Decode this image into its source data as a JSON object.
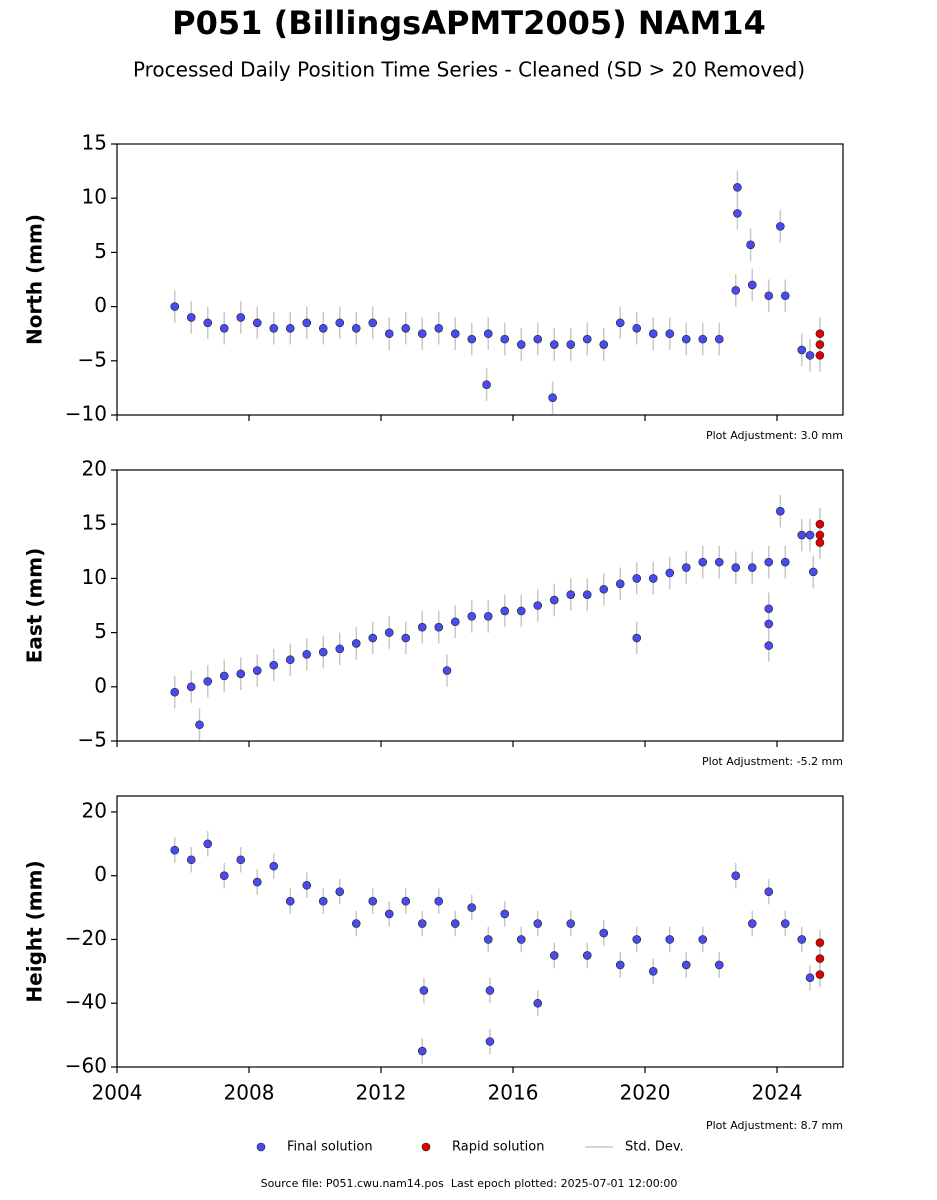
{
  "title": "P051 (BillingsAPMT2005) NAM14",
  "subtitle": "Processed Daily Position Time Series - Cleaned (SD > 20 Removed)",
  "footer": "Source file: P051.cwu.nam14.pos  Last epoch plotted: 2025-07-01 12:00:00",
  "chart_data": [
    {
      "type": "scatter",
      "y_label": "North (mm)",
      "annotation": "Plot Adjustment: 3.0 mm",
      "xlim": [
        2004,
        2026
      ],
      "xticks": [
        2004,
        2008,
        2012,
        2016,
        2020,
        2024
      ],
      "ylim": [
        -10,
        15
      ],
      "yticks": [
        {
          "value": -10,
          "label": "−10"
        },
        {
          "value": -5,
          "label": "−5"
        },
        0,
        5,
        10,
        15
      ],
      "std_dev": {
        "name": "Std. Dev.",
        "color": "#c8c8c8",
        "value": 1.5
      },
      "series": [
        {
          "name": "Final solution",
          "color": "#4a4af0",
          "x": [
            2005.75,
            2006.25,
            2006.75,
            2007.25,
            2007.75,
            2008.25,
            2008.75,
            2009.25,
            2009.75,
            2010.25,
            2010.75,
            2011.25,
            2011.75,
            2012.25,
            2012.75,
            2013.25,
            2013.75,
            2014.25,
            2014.75,
            2015.25,
            2015.75,
            2016.25,
            2016.75,
            2017.25,
            2017.75,
            2018.25,
            2018.75,
            2019.25,
            2019.75,
            2020.25,
            2020.75,
            2021.25,
            2021.75,
            2022.25,
            2022.75,
            2023.25,
            2023.75,
            2024.25,
            2024.75,
            2025.0,
            2022.8,
            2022.8,
            2023.2,
            2024.1,
            2015.2,
            2017.2
          ],
          "values": [
            0,
            -1,
            -1.5,
            -2,
            -1,
            -1.5,
            -2,
            -2,
            -1.5,
            -2,
            -1.5,
            -2,
            -1.5,
            -2.5,
            -2,
            -2.5,
            -2,
            -2.5,
            -3,
            -2.5,
            -3,
            -3.5,
            -3,
            -3.5,
            -3.5,
            -3,
            -3.5,
            -1.5,
            -2,
            -2.5,
            -2.5,
            -3,
            -3,
            -3,
            1.5,
            2,
            1,
            1,
            -4,
            -4.5,
            11,
            8.6,
            5.7,
            7.4,
            -7.2,
            -8.4
          ]
        },
        {
          "name": "Rapid solution",
          "color": "#e00000",
          "x": [
            2025.3,
            2025.3,
            2025.3
          ],
          "values": [
            -2.5,
            -3.5,
            -4.5
          ]
        }
      ]
    },
    {
      "type": "scatter",
      "y_label": "East (mm)",
      "annotation": "Plot Adjustment: -5.2 mm",
      "xlim": [
        2004,
        2026
      ],
      "xticks": [
        2004,
        2008,
        2012,
        2016,
        2020,
        2024
      ],
      "ylim": [
        -5,
        20
      ],
      "yticks": [
        {
          "value": -5,
          "label": "−5"
        },
        0,
        5,
        10,
        15,
        20
      ],
      "std_dev": {
        "name": "Std. Dev.",
        "color": "#c8c8c8",
        "value": 1.5
      },
      "series": [
        {
          "name": "Final solution",
          "color": "#4a4af0",
          "x": [
            2005.75,
            2006.25,
            2006.75,
            2007.25,
            2007.75,
            2008.25,
            2008.75,
            2009.25,
            2009.75,
            2010.25,
            2010.75,
            2011.25,
            2011.75,
            2012.25,
            2012.75,
            2013.25,
            2013.75,
            2014.25,
            2014.75,
            2015.25,
            2015.75,
            2016.25,
            2016.75,
            2017.25,
            2017.75,
            2018.25,
            2018.75,
            2019.25,
            2019.75,
            2020.25,
            2020.75,
            2021.25,
            2021.75,
            2022.25,
            2022.75,
            2023.25,
            2023.75,
            2024.25,
            2024.75,
            2025.0,
            2006.5,
            2014.0,
            2019.75,
            2023.75,
            2023.75,
            2023.75,
            2024.1,
            2025.1
          ],
          "values": [
            -0.5,
            0,
            0.5,
            1,
            1.2,
            1.5,
            2,
            2.5,
            3,
            3.2,
            3.5,
            4,
            4.5,
            5,
            4.5,
            5.5,
            5.5,
            6,
            6.5,
            6.5,
            7,
            7,
            7.5,
            8,
            8.5,
            8.5,
            9,
            9.5,
            10,
            10,
            10.5,
            11,
            11.5,
            11.5,
            11,
            11,
            11.5,
            11.5,
            14,
            14,
            -3.5,
            1.5,
            4.5,
            3.8,
            5.8,
            7.2,
            16.2,
            10.6
          ]
        },
        {
          "name": "Rapid solution",
          "color": "#e00000",
          "x": [
            2025.3,
            2025.3,
            2025.3
          ],
          "values": [
            15,
            14,
            13.3
          ]
        }
      ]
    },
    {
      "type": "scatter",
      "y_label": "Height (mm)",
      "annotation": "Plot Adjustment: 8.7 mm",
      "xlim": [
        2004,
        2026
      ],
      "xticks": [
        2004,
        2008,
        2012,
        2016,
        2020,
        2024
      ],
      "ylim": [
        -60,
        25
      ],
      "yticks": [
        {
          "value": -60,
          "label": "−60"
        },
        {
          "value": -40,
          "label": "−40"
        },
        {
          "value": -20,
          "label": "−20"
        },
        0,
        20
      ],
      "std_dev": {
        "name": "Std. Dev.",
        "color": "#c8c8c8",
        "value": 4
      },
      "series": [
        {
          "name": "Final solution",
          "color": "#4a4af0",
          "x": [
            2005.75,
            2006.25,
            2006.75,
            2007.25,
            2007.75,
            2008.25,
            2008.75,
            2009.25,
            2009.75,
            2010.25,
            2010.75,
            2011.25,
            2011.75,
            2012.25,
            2012.75,
            2013.25,
            2013.75,
            2014.25,
            2014.75,
            2015.25,
            2015.75,
            2016.25,
            2016.75,
            2017.25,
            2017.75,
            2018.25,
            2018.75,
            2019.25,
            2019.75,
            2020.25,
            2020.75,
            2021.25,
            2021.75,
            2022.25,
            2022.75,
            2023.25,
            2023.75,
            2024.25,
            2024.75,
            2025.0,
            2013.25,
            2013.3,
            2015.3,
            2015.3,
            2016.75
          ],
          "values": [
            8,
            5,
            10,
            0,
            5,
            -2,
            3,
            -8,
            -3,
            -8,
            -5,
            -15,
            -8,
            -12,
            -8,
            -15,
            -8,
            -15,
            -10,
            -20,
            -12,
            -20,
            -15,
            -25,
            -15,
            -25,
            -18,
            -28,
            -20,
            -30,
            -20,
            -28,
            -20,
            -28,
            0,
            -15,
            -5,
            -15,
            -20,
            -32,
            -55,
            -36,
            -52,
            -36,
            -40
          ]
        },
        {
          "name": "Rapid solution",
          "color": "#e00000",
          "x": [
            2025.3,
            2025.3,
            2025.3
          ],
          "values": [
            -21,
            -26,
            -31
          ]
        }
      ]
    }
  ]
}
